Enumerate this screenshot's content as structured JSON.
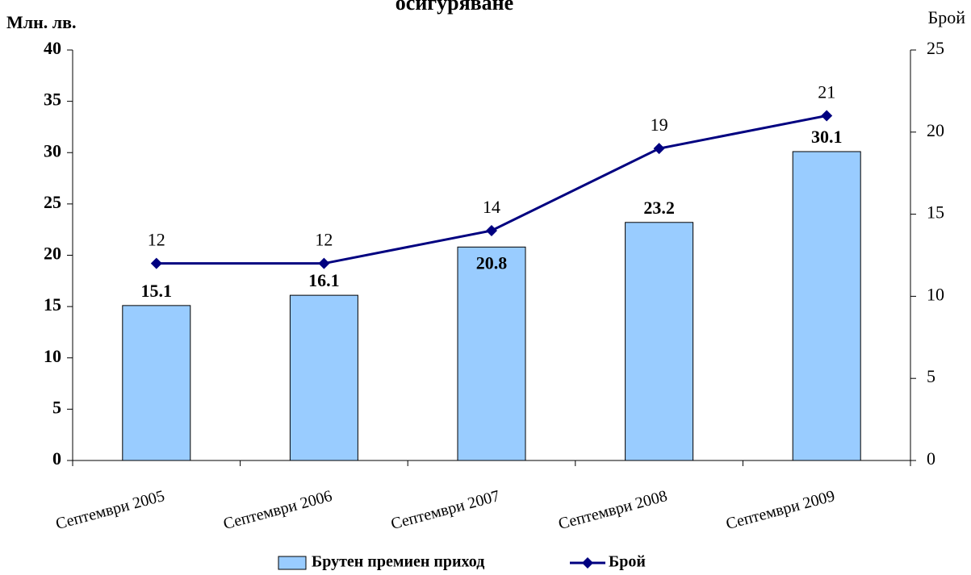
{
  "chart_data": {
    "type": "bar",
    "title": "осигуряване",
    "y_label": "Млн. лв.",
    "y2_label": "Брой",
    "categories": [
      "Септември 2005",
      "Септември 2006",
      "Септември 2007",
      "Септември 2008",
      "Септември 2009"
    ],
    "series": [
      {
        "name": "Брутен премиен приход",
        "type": "bar",
        "color": "#99ccff",
        "values": [
          15.1,
          16.1,
          20.8,
          23.2,
          30.1
        ]
      },
      {
        "name": "Брой",
        "type": "line",
        "color": "#000080",
        "axis": "y2",
        "values": [
          12,
          12,
          14,
          19,
          21
        ]
      }
    ],
    "ylim": [
      0,
      40
    ],
    "yticks": [
      0,
      5,
      10,
      15,
      20,
      25,
      30,
      35,
      40
    ],
    "y2lim": [
      0,
      25
    ],
    "y2ticks": [
      0,
      5,
      10,
      15,
      20,
      25
    ],
    "legend": "bottom"
  }
}
